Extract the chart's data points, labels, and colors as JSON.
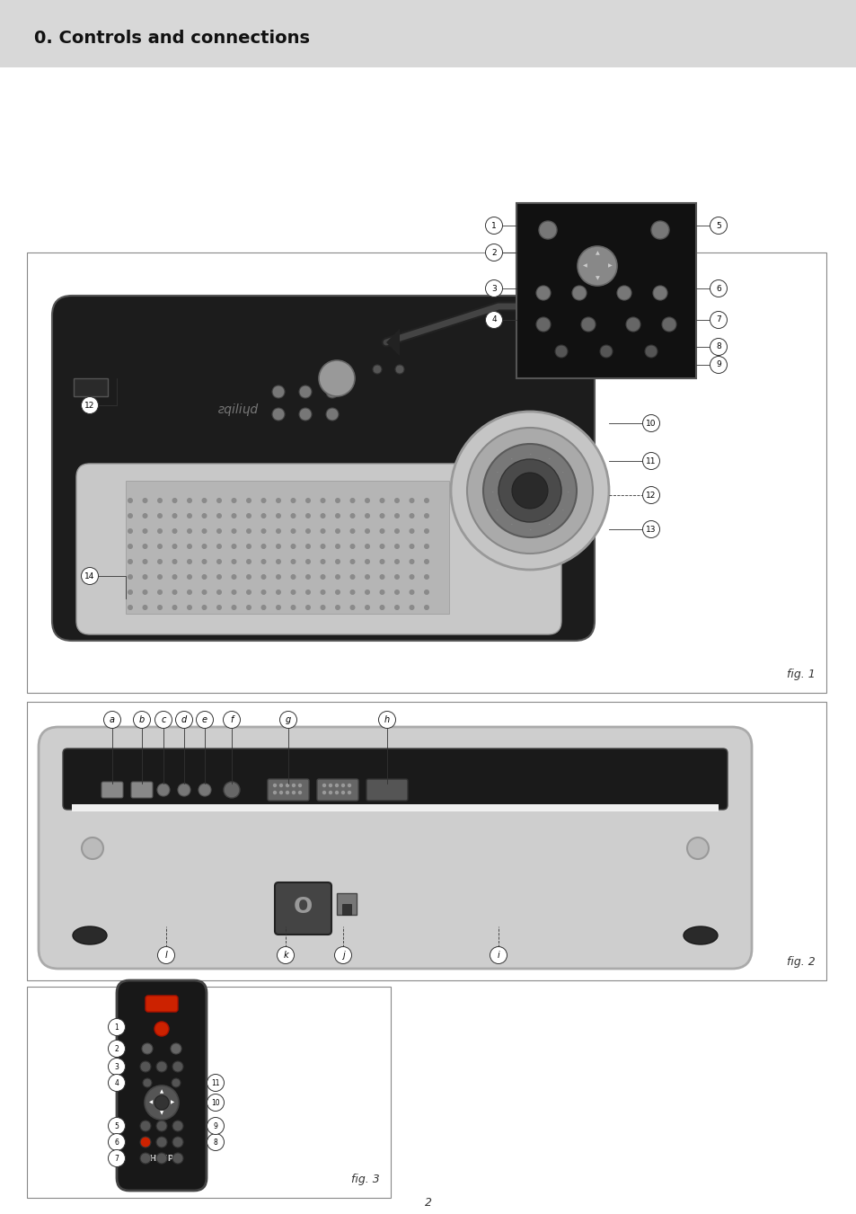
{
  "title": "0. Controls and connections",
  "title_fontsize": 14,
  "title_bold": true,
  "bg_color": "#e8e8e8",
  "page_bg": "#ffffff",
  "fig1_label": "fig. 1",
  "fig2_label": "fig. 2",
  "fig3_label": "fig. 3",
  "page_number": "2",
  "header_bg": "#d8d8d8",
  "box_border": "#aaaaaa",
  "fig1_numbers": [
    "1",
    "2",
    "3",
    "4",
    "5",
    "6",
    "7",
    "8",
    "9",
    "10",
    "11",
    "12",
    "12",
    "13",
    "14"
  ],
  "fig2_letters": [
    "a",
    "b",
    "c",
    "d",
    "e",
    "f",
    "g",
    "h",
    "i",
    "j",
    "k",
    "l"
  ],
  "fig3_numbers": [
    "1",
    "2",
    "3",
    "4",
    "5",
    "6",
    "7",
    "8",
    "9",
    "10",
    "11"
  ]
}
